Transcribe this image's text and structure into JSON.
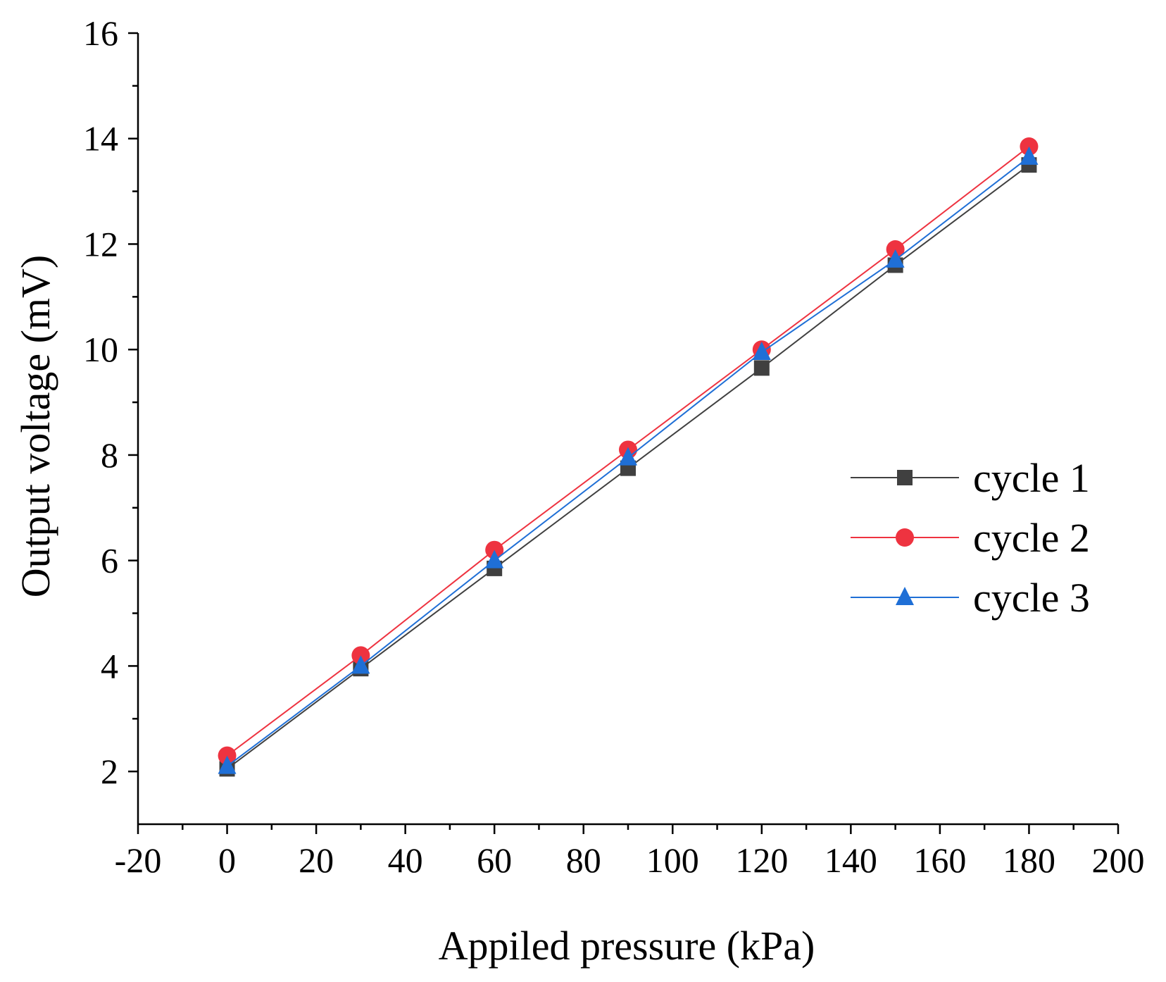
{
  "chart_data": {
    "type": "line",
    "title": "",
    "xlabel": "Appiled pressure (kPa)",
    "ylabel": "Output voltage (mV)",
    "xlim": [
      -20,
      200
    ],
    "ylim": [
      1,
      16
    ],
    "x_ticks": [
      -20,
      0,
      20,
      40,
      60,
      80,
      100,
      120,
      140,
      160,
      180,
      200
    ],
    "y_ticks": [
      2,
      4,
      6,
      8,
      10,
      12,
      14,
      16
    ],
    "x": [
      0,
      30,
      60,
      90,
      120,
      150,
      180
    ],
    "series": [
      {
        "name": "cycle 1",
        "color": "#404040",
        "marker": "square",
        "values": [
          2.05,
          3.95,
          5.85,
          7.75,
          9.65,
          11.6,
          13.5
        ]
      },
      {
        "name": "cycle 2",
        "color": "#ee3340",
        "marker": "circle",
        "values": [
          2.3,
          4.2,
          6.2,
          8.1,
          10.0,
          11.9,
          13.85
        ]
      },
      {
        "name": "cycle 3",
        "color": "#1f6fd6",
        "marker": "triangle",
        "values": [
          2.1,
          4.0,
          6.0,
          7.95,
          9.95,
          11.7,
          13.65
        ]
      }
    ],
    "legend_position": "right"
  }
}
